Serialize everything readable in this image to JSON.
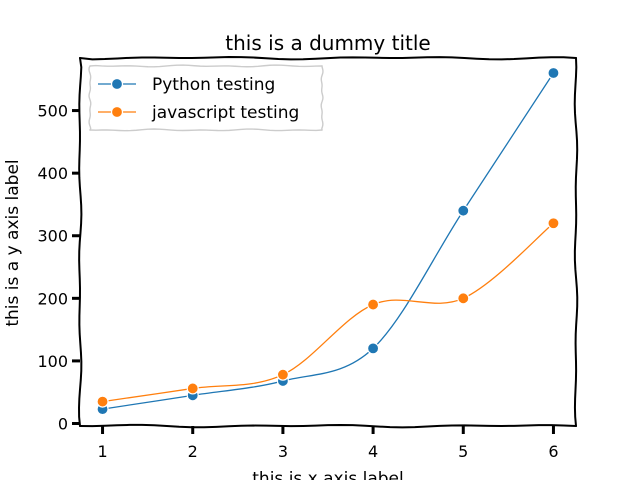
{
  "chart_data": {
    "type": "line",
    "title": "this is a dummy title",
    "xlabel": "this is x axis label",
    "ylabel": "this is a y axis label",
    "x": [
      1,
      2,
      3,
      4,
      5,
      6
    ],
    "xlim": [
      0.75,
      6.25
    ],
    "ylim": [
      -4,
      584
    ],
    "xticks": [
      1,
      2,
      3,
      4,
      5,
      6
    ],
    "yticks": [
      0,
      100,
      200,
      300,
      400,
      500
    ],
    "grid": false,
    "legend_position": "top-left",
    "series": [
      {
        "name": "Python testing",
        "color": "#1f77b4",
        "values": [
          23,
          45,
          68,
          120,
          340,
          560
        ]
      },
      {
        "name": "javascript testing",
        "color": "#ff7f0e",
        "values": [
          35,
          56,
          78,
          190,
          200,
          320
        ]
      }
    ]
  }
}
